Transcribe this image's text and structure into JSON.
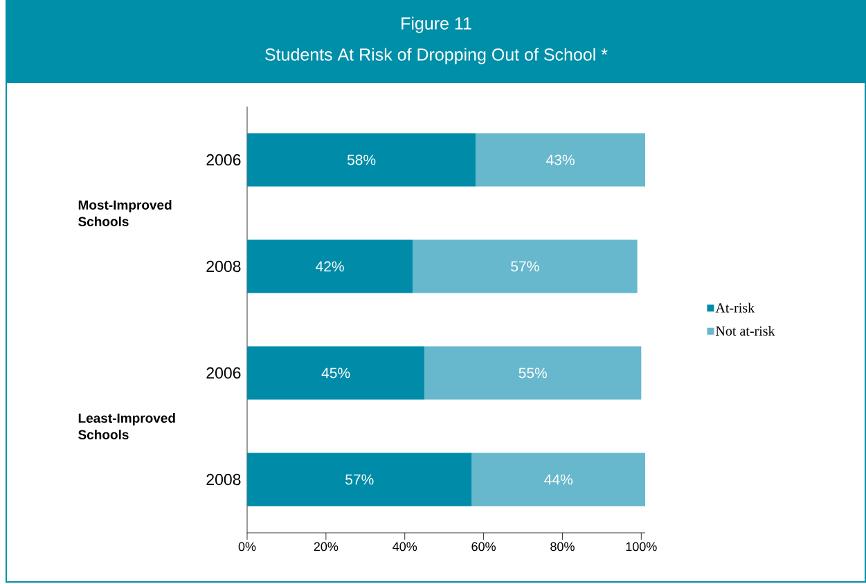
{
  "chart_data": {
    "type": "bar",
    "orientation": "horizontal",
    "stacked": true,
    "title": "Figure 11",
    "subtitle": "Students At Risk of Dropping Out of School *",
    "categories": [
      "2006",
      "2008",
      "2006",
      "2008"
    ],
    "annotations": [
      "Most-Improved Schools",
      "Least-Improved Schools"
    ],
    "series": [
      {
        "name": "At-risk",
        "color": "#008ca8",
        "values": [
          58,
          42,
          45,
          57
        ],
        "value_labels": [
          "58%",
          "42%",
          "45%",
          "57%"
        ]
      },
      {
        "name": "Not at-risk",
        "color": "#67b8cc",
        "values": [
          43,
          57,
          55,
          44
        ],
        "value_labels": [
          "43%",
          "57%",
          "55%",
          "44%"
        ]
      }
    ],
    "xlim": [
      0,
      101
    ],
    "xticks": [
      {
        "value": 0,
        "label": "0%"
      },
      {
        "value": 20,
        "label": "20%"
      },
      {
        "value": 40,
        "label": "40%"
      },
      {
        "value": 60,
        "label": "60%"
      },
      {
        "value": 80,
        "label": "80%"
      },
      {
        "value": 100,
        "label": "100%"
      }
    ],
    "legend": "right",
    "grid": false
  }
}
